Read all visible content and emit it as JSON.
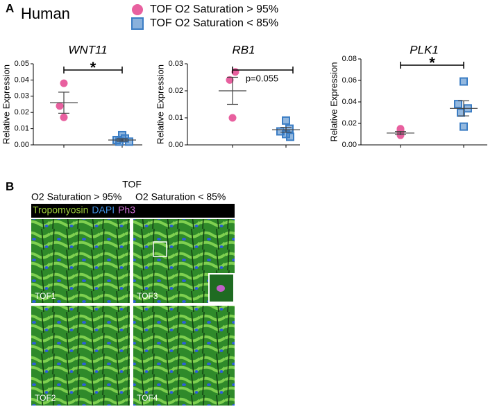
{
  "panel_labels": [
    "A",
    "B"
  ],
  "header": "Human",
  "legend": [
    {
      "name": "TOF O2 Saturation > 95%",
      "color": "#e8609f",
      "marker": "circle"
    },
    {
      "name": "TOF O2 Saturation < 85%",
      "color": "#3b7dc4",
      "marker": "square"
    }
  ],
  "chart_data": [
    {
      "type": "dot",
      "title": "WNT11",
      "y_label": "Relative Expression",
      "annotation": "*",
      "ylim": [
        0,
        0.05
      ],
      "yticks": [
        {
          "value": 0,
          "label": "0.00"
        },
        {
          "value": 0.01,
          "label": "0.01"
        },
        {
          "value": 0.02,
          "label": "0.02"
        },
        {
          "value": 0.03,
          "label": "0.03"
        },
        {
          "value": 0.04,
          "label": "0.04"
        },
        {
          "value": 0.05,
          "label": "0.05"
        }
      ],
      "series": [
        {
          "color": "#e8609f",
          "values": [
            0.038,
            0.024,
            0.017
          ],
          "mean": 0.026,
          "sem": 0.0065
        },
        {
          "color": "#3b7dc4",
          "values": [
            0.006,
            0.004,
            0.003,
            0.002,
            0.002
          ],
          "mean": 0.003,
          "sem": 0.0008
        }
      ]
    },
    {
      "type": "dot",
      "title": "RB1",
      "y_label": "Relative Expression",
      "annotation": "p=0.055",
      "ylim": [
        0,
        0.03
      ],
      "yticks": [
        {
          "value": 0,
          "label": "0.00"
        },
        {
          "value": 0.01,
          "label": "0.01"
        },
        {
          "value": 0.02,
          "label": "0.02"
        },
        {
          "value": 0.03,
          "label": "0.03"
        }
      ],
      "series": [
        {
          "color": "#e8609f",
          "values": [
            0.027,
            0.024,
            0.01
          ],
          "mean": 0.02,
          "sem": 0.005
        },
        {
          "color": "#3b7dc4",
          "values": [
            0.009,
            0.006,
            0.005,
            0.004,
            0.003
          ],
          "mean": 0.0056,
          "sem": 0.0009
        }
      ]
    },
    {
      "type": "dot",
      "title": "PLK1",
      "y_label": "Relative Expression",
      "annotation": "*",
      "ylim": [
        0,
        0.08
      ],
      "yticks": [
        {
          "value": 0,
          "label": "0.00"
        },
        {
          "value": 0.02,
          "label": "0.02"
        },
        {
          "value": 0.04,
          "label": "0.04"
        },
        {
          "value": 0.06,
          "label": "0.06"
        },
        {
          "value": 0.08,
          "label": "0.08"
        }
      ],
      "series": [
        {
          "color": "#e8609f",
          "values": [
            0.015,
            0.0135,
            0.012,
            0.009
          ],
          "mean": 0.011,
          "sem": 0.0015
        },
        {
          "color": "#3b7dc4",
          "values": [
            0.059,
            0.038,
            0.034,
            0.03,
            0.017
          ],
          "mean": 0.034,
          "sem": 0.007
        }
      ]
    }
  ],
  "panel_b": {
    "title": "TOF",
    "columns": [
      "O2 Saturation > 95%",
      "O2 Saturation < 85%"
    ],
    "stains": [
      {
        "name": "Tropomyosin",
        "color": "#9ccd3a"
      },
      {
        "name": "DAPI",
        "color": "#3f8fe0"
      },
      {
        "name": "Ph3",
        "color": "#d070d8"
      }
    ],
    "images": [
      "TOF1",
      "TOF3",
      "TOF2",
      "TOF4"
    ]
  }
}
